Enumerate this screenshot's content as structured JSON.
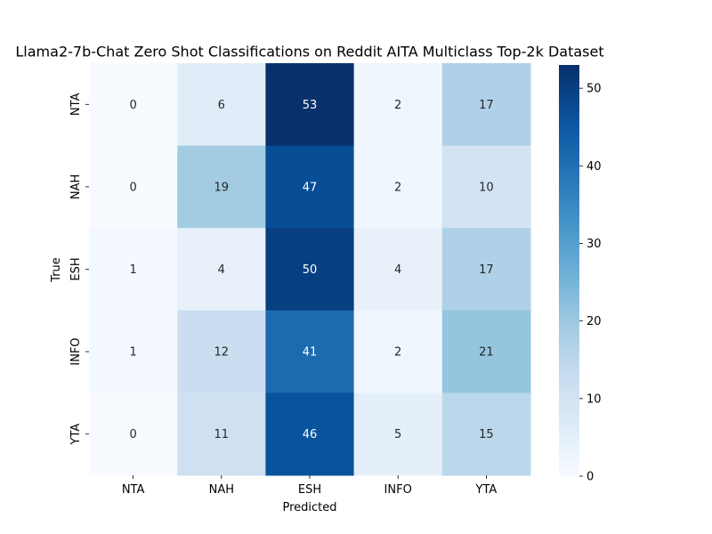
{
  "chart_data": {
    "type": "heatmap",
    "title": "Llama2-7b-Chat Zero Shot Classifications on Reddit AITA Multiclass Top-2k Dataset",
    "xlabel": "Predicted",
    "ylabel": "True",
    "x_categories": [
      "NTA",
      "NAH",
      "ESH",
      "INFO",
      "YTA"
    ],
    "y_categories": [
      "NTA",
      "NAH",
      "ESH",
      "INFO",
      "YTA"
    ],
    "values": [
      [
        0,
        6,
        53,
        2,
        17
      ],
      [
        0,
        19,
        47,
        2,
        10
      ],
      [
        1,
        4,
        50,
        4,
        17
      ],
      [
        1,
        12,
        41,
        2,
        21
      ],
      [
        0,
        11,
        46,
        5,
        15
      ]
    ],
    "colormap": "Blues",
    "vmin": 0,
    "vmax": 53,
    "colorbar_ticks": [
      0,
      10,
      20,
      30,
      40,
      50
    ],
    "colorbar_tick_labels": [
      "0",
      "10",
      "20",
      "30",
      "40",
      "50"
    ],
    "annotated": true
  }
}
